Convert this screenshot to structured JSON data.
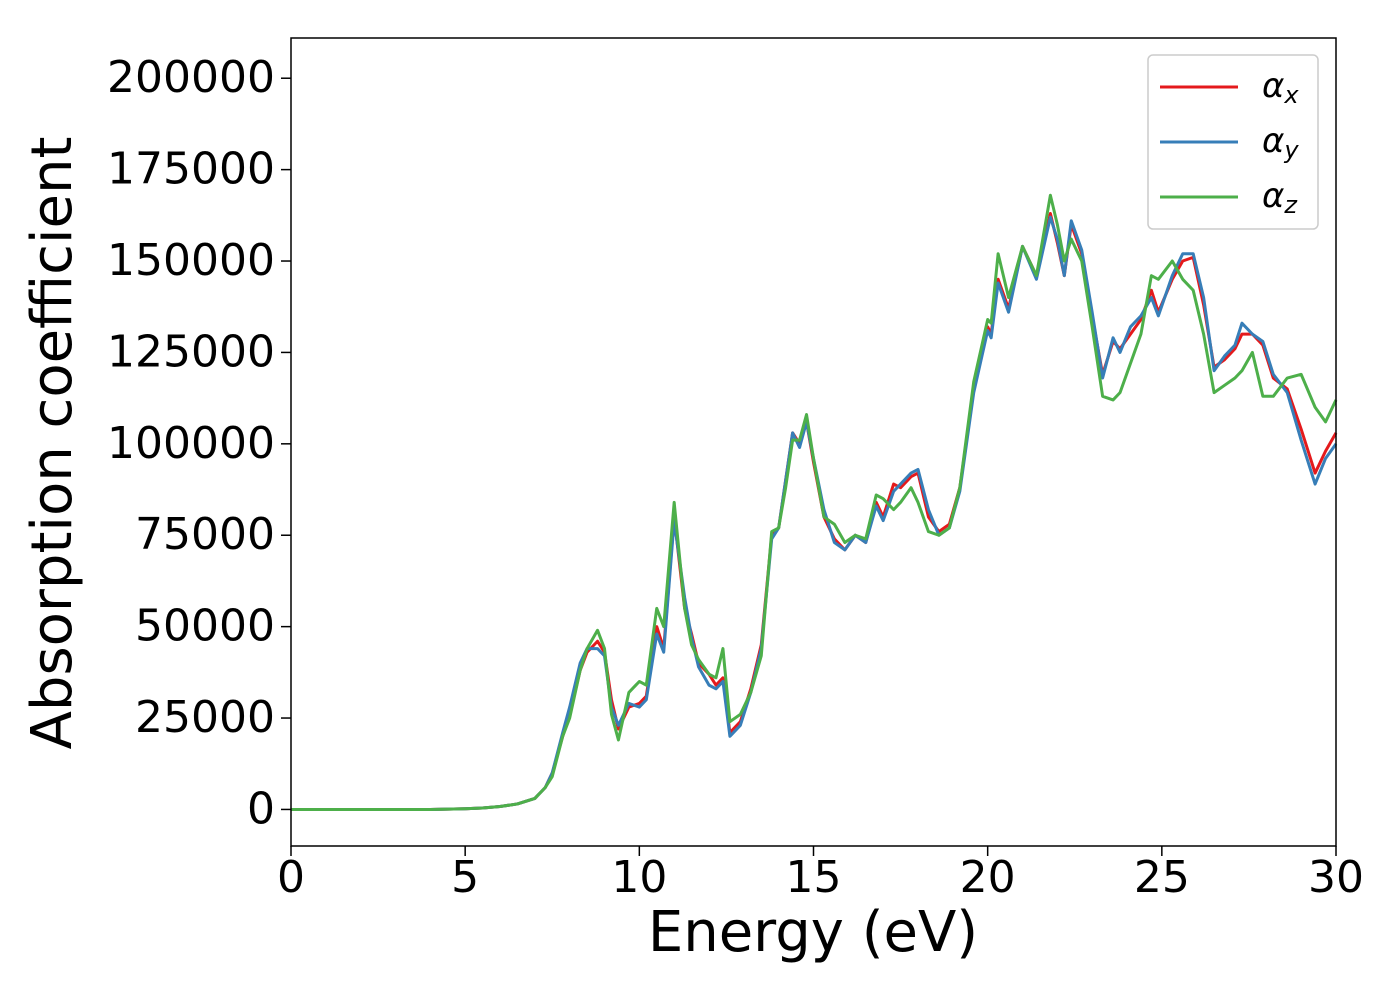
{
  "chart_data": {
    "type": "line",
    "xlabel": "Energy (eV)",
    "ylabel": "Absorption coefficient",
    "x": [
      0,
      1,
      2,
      3,
      4,
      5,
      5.5,
      6,
      6.5,
      7,
      7.3,
      7.5,
      7.8,
      8.0,
      8.3,
      8.5,
      8.8,
      9.0,
      9.2,
      9.4,
      9.7,
      10.0,
      10.2,
      10.5,
      10.7,
      11.0,
      11.3,
      11.5,
      11.7,
      12.0,
      12.2,
      12.4,
      12.6,
      12.9,
      13.2,
      13.5,
      13.8,
      14.0,
      14.2,
      14.4,
      14.6,
      14.8,
      15.0,
      15.3,
      15.6,
      15.9,
      16.2,
      16.5,
      16.8,
      17.0,
      17.3,
      17.5,
      17.8,
      18.0,
      18.3,
      18.6,
      18.9,
      19.2,
      19.6,
      20.0,
      20.1,
      20.3,
      20.6,
      21.0,
      21.4,
      21.8,
      22.0,
      22.2,
      22.4,
      22.7,
      23.0,
      23.3,
      23.6,
      23.8,
      24.1,
      24.4,
      24.7,
      24.9,
      25.3,
      25.6,
      25.9,
      26.2,
      26.5,
      26.8,
      27.1,
      27.3,
      27.6,
      27.9,
      28.2,
      28.6,
      29.0,
      29.4,
      29.7,
      30.0
    ],
    "series": [
      {
        "name": "αx",
        "color": "#e41a1c",
        "values": [
          0,
          0,
          0,
          0,
          0,
          200,
          400,
          800,
          1500,
          3000,
          6000,
          10000,
          20000,
          26000,
          38000,
          43000,
          46000,
          43000,
          30000,
          22000,
          28000,
          29000,
          31000,
          50000,
          44000,
          80000,
          55000,
          48000,
          40000,
          37000,
          34000,
          36000,
          21000,
          24000,
          33000,
          45000,
          75000,
          77000,
          90000,
          103000,
          100000,
          106000,
          95000,
          80000,
          74000,
          71000,
          75000,
          73000,
          84000,
          80000,
          89000,
          88000,
          91000,
          92000,
          80000,
          76000,
          78000,
          88000,
          115000,
          132000,
          130000,
          145000,
          137000,
          154000,
          146000,
          163000,
          155000,
          146000,
          160000,
          152000,
          135000,
          119000,
          128000,
          126000,
          130000,
          134000,
          142000,
          136000,
          145000,
          150000,
          151000,
          138000,
          121000,
          123000,
          126000,
          130000,
          130000,
          127000,
          118000,
          115000,
          104000,
          92000,
          98000,
          103000
        ]
      },
      {
        "name": "αy",
        "color": "#377eb8",
        "values": [
          0,
          0,
          0,
          0,
          0,
          200,
          400,
          800,
          1500,
          3000,
          6000,
          10000,
          21000,
          28000,
          40000,
          44000,
          44000,
          42000,
          28000,
          23000,
          29000,
          28000,
          30000,
          48000,
          43000,
          79000,
          58000,
          47000,
          39000,
          34000,
          33000,
          35000,
          20000,
          23000,
          32000,
          44000,
          74000,
          77000,
          90000,
          103000,
          99000,
          106000,
          96000,
          82000,
          73000,
          71000,
          75000,
          73000,
          83000,
          79000,
          87000,
          89000,
          92000,
          93000,
          82000,
          75000,
          77000,
          87000,
          114000,
          131000,
          129000,
          144000,
          136000,
          154000,
          145000,
          162000,
          156000,
          146000,
          161000,
          153000,
          136000,
          118000,
          129000,
          125000,
          132000,
          135000,
          140000,
          135000,
          146000,
          152000,
          152000,
          140000,
          120000,
          124000,
          127000,
          133000,
          130000,
          128000,
          119000,
          114000,
          101000,
          89000,
          96000,
          100000
        ]
      },
      {
        "name": "αz",
        "color": "#4daf4a",
        "values": [
          0,
          0,
          0,
          0,
          0,
          200,
          400,
          800,
          1500,
          3000,
          6000,
          9000,
          20000,
          25000,
          38000,
          44000,
          49000,
          44000,
          26000,
          19000,
          32000,
          35000,
          34000,
          55000,
          50000,
          84000,
          55000,
          45000,
          41000,
          37000,
          36000,
          44000,
          24000,
          26000,
          32000,
          42000,
          76000,
          77000,
          88000,
          101000,
          101000,
          108000,
          96000,
          80000,
          78000,
          73000,
          75000,
          74000,
          86000,
          85000,
          82000,
          84000,
          88000,
          84000,
          76000,
          75000,
          77000,
          88000,
          117000,
          134000,
          133000,
          152000,
          140000,
          154000,
          146000,
          168000,
          160000,
          150000,
          156000,
          150000,
          132000,
          113000,
          112000,
          114000,
          122000,
          130000,
          146000,
          145000,
          150000,
          145000,
          142000,
          130000,
          114000,
          116000,
          118000,
          120000,
          125000,
          113000,
          113000,
          118000,
          119000,
          110000,
          106000,
          112000
        ]
      }
    ],
    "xlim": [
      0,
      30
    ],
    "xticks": [
      0,
      5,
      10,
      15,
      20,
      25,
      30
    ],
    "ylim": [
      -10000,
      211000
    ],
    "yticks": [
      0,
      25000,
      50000,
      75000,
      100000,
      125000,
      150000,
      175000,
      200000
    ],
    "legend": "upper right",
    "grid": false
  }
}
